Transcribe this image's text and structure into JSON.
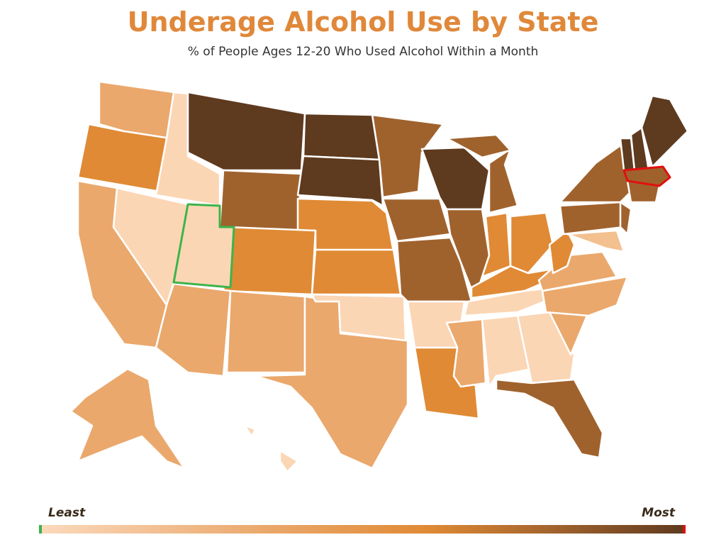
{
  "header": {
    "title": "Underage Alcohol Use by State",
    "subtitle": "% of People Ages 12-20 Who Used Alcohol Within a Month"
  },
  "legend": {
    "min_label": "Least",
    "max_label": "Most"
  }
}
